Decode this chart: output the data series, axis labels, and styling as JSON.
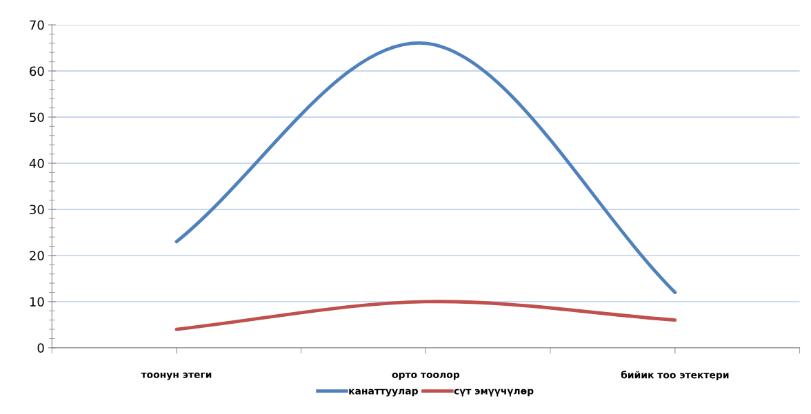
{
  "chart_data": {
    "type": "line",
    "categories": [
      "тоонун этеги",
      "орто тоолор",
      "бийик тоо этектери"
    ],
    "series": [
      {
        "name": "канаттуулар",
        "color": "#4f81bd",
        "values": [
          23,
          66,
          12
        ]
      },
      {
        "name": "сүт эмүүчүлөр",
        "color": "#c0504d",
        "values": [
          4,
          10,
          6
        ]
      }
    ],
    "ylim": [
      0,
      70
    ],
    "yticks": [
      0,
      10,
      20,
      30,
      40,
      50,
      60,
      70
    ],
    "grid": "y",
    "legend": "bottom",
    "marker": "none",
    "line_style": "solid"
  }
}
